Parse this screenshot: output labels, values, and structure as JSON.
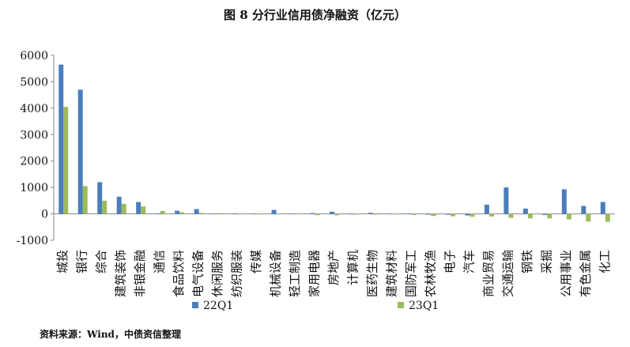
{
  "chart_data": {
    "type": "bar",
    "title": "图 8  分行业信用债净融资（亿元）",
    "source": "资料来源：Wind，中债资信整理",
    "xlabel": "",
    "ylabel": "",
    "ylim": [
      -1000,
      6000
    ],
    "yticks": [
      -1000,
      0,
      1000,
      2000,
      3000,
      4000,
      5000,
      6000
    ],
    "grid": false,
    "legend": "bottom",
    "categories": [
      "城投",
      "银行",
      "综合",
      "建筑装饰",
      "非银金融",
      "通信",
      "食品饮料",
      "电气设备",
      "休闲服务",
      "纺织服装",
      "传媒",
      "机械设备",
      "轻工制造",
      "家用电器",
      "房地产",
      "计算机",
      "医药生物",
      "建筑材料",
      "国防军工",
      "农林牧渔",
      "电子",
      "汽车",
      "商业贸易",
      "交通运输",
      "钢铁",
      "采掘",
      "公用事业",
      "有色金属",
      "化工"
    ],
    "series": [
      {
        "name": "22Q1",
        "color": "#4a7ebb",
        "values": [
          5650,
          4700,
          1200,
          650,
          450,
          20,
          120,
          180,
          10,
          20,
          10,
          150,
          10,
          30,
          80,
          -20,
          40,
          10,
          20,
          -30,
          -30,
          -60,
          350,
          1000,
          200,
          -40,
          930,
          300,
          450
        ]
      },
      {
        "name": "23Q1",
        "color": "#9bbb59",
        "values": [
          4050,
          1050,
          500,
          380,
          280,
          110,
          60,
          40,
          30,
          -20,
          -20,
          -10,
          -10,
          -50,
          -50,
          -20,
          -30,
          -20,
          -40,
          -80,
          -90,
          -110,
          -100,
          -150,
          -170,
          -170,
          -210,
          -290,
          -300
        ]
      }
    ]
  }
}
